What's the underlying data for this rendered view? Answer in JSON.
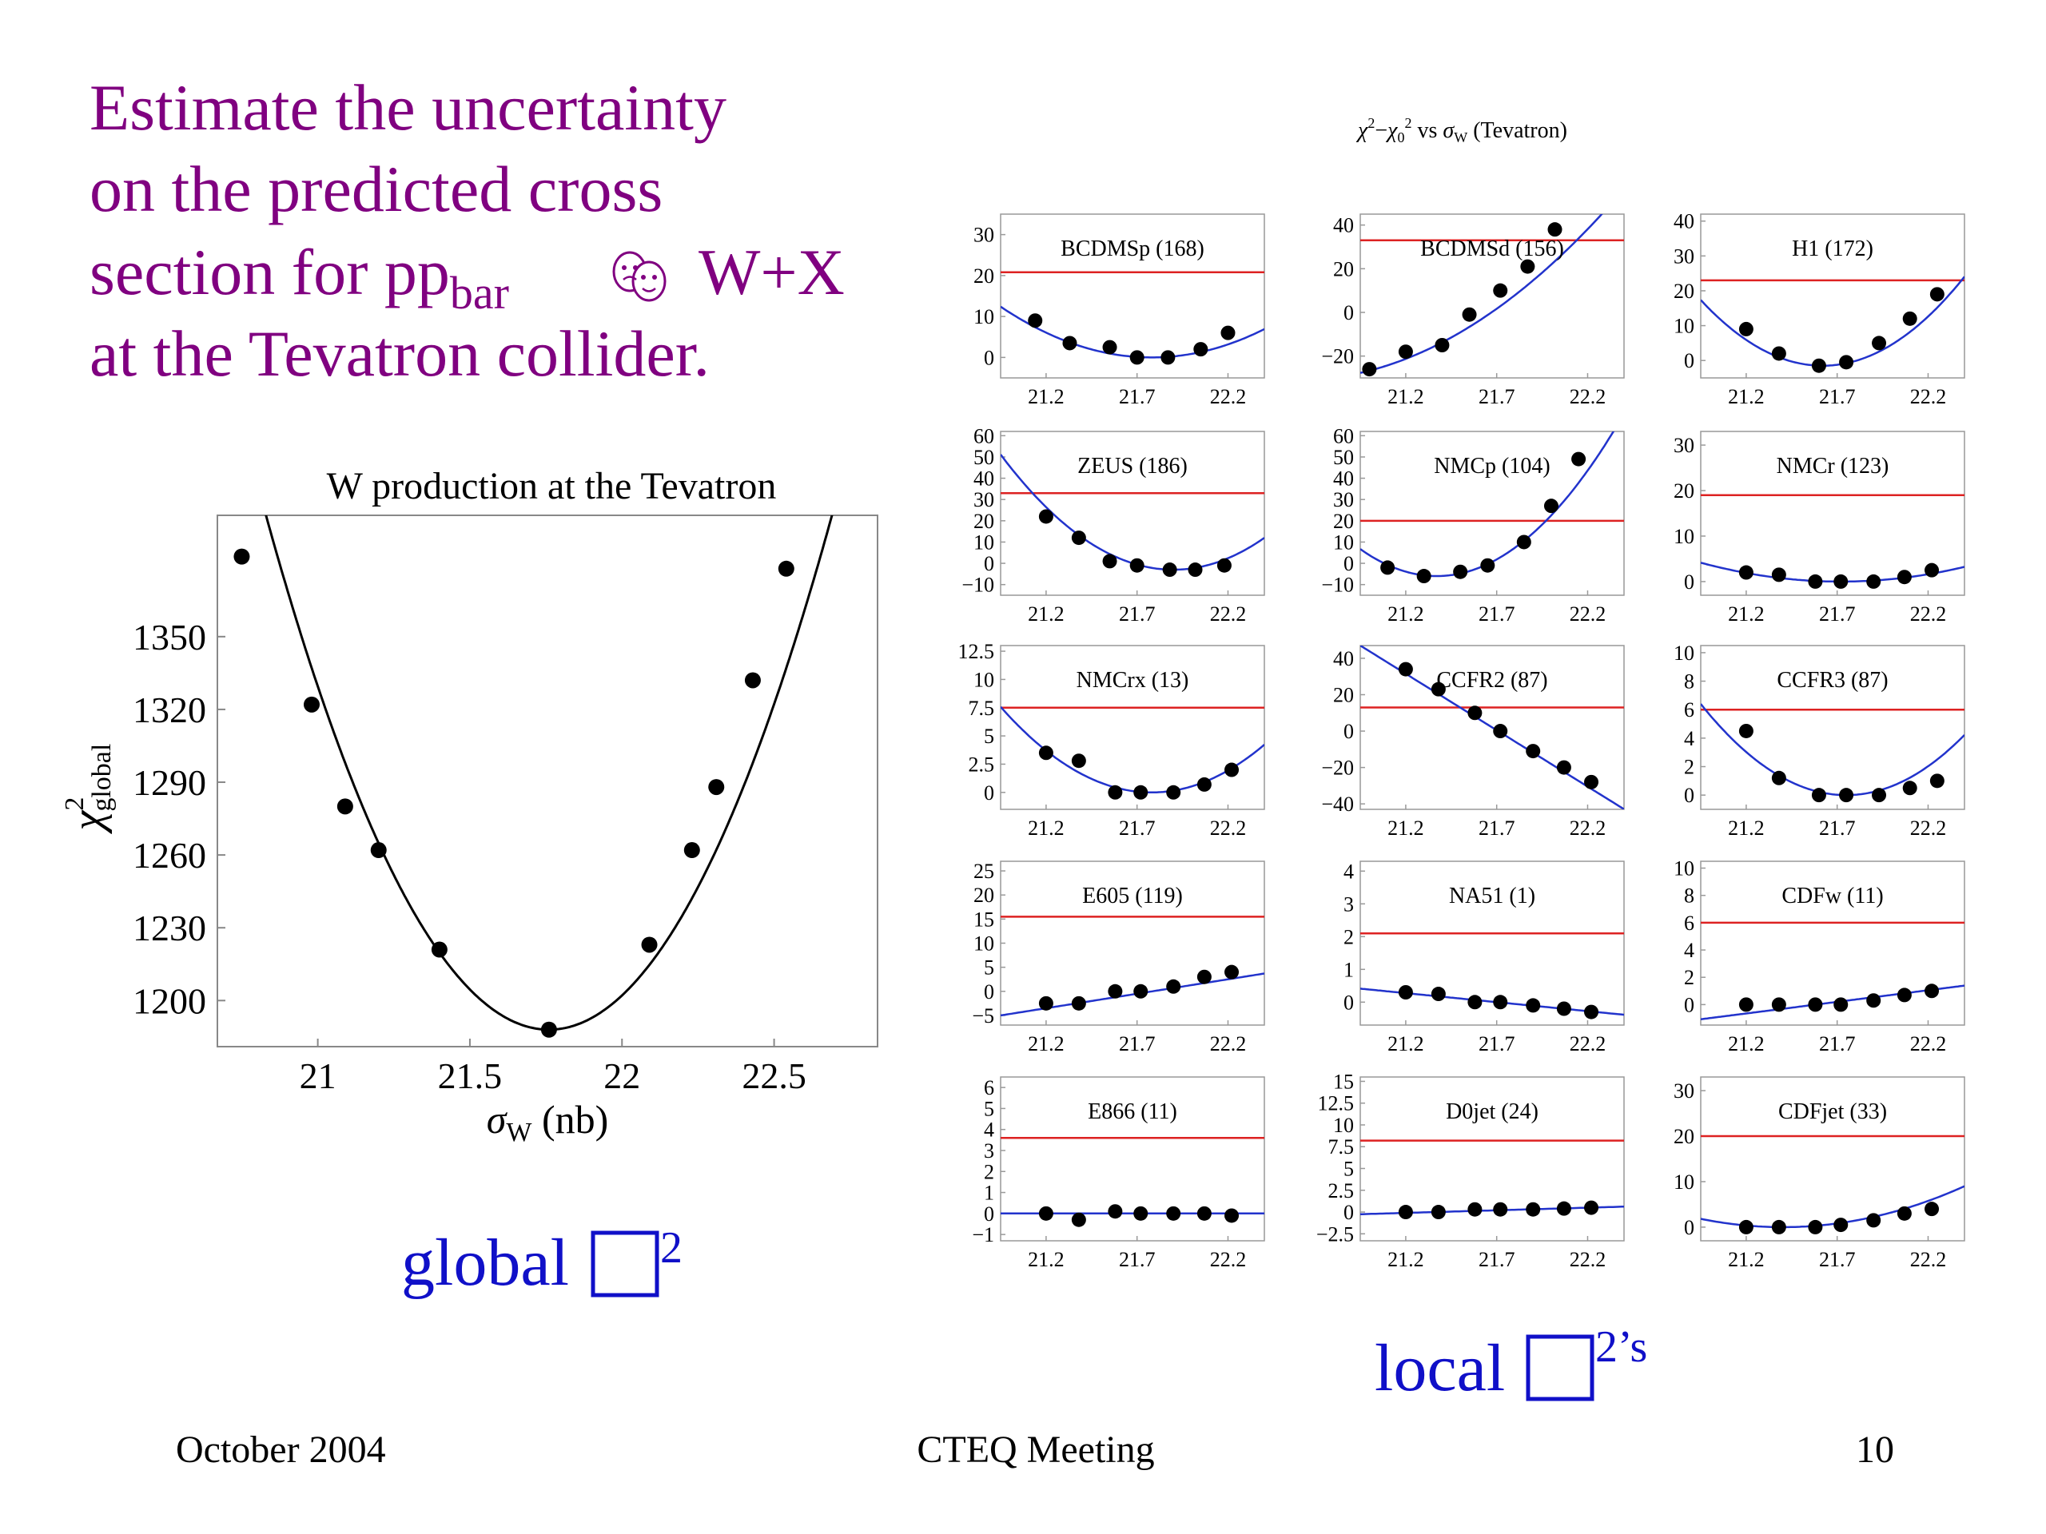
{
  "slide": {
    "title_lines": [
      "Estimate the uncertainty",
      "on the predicted cross",
      "section for pp",
      "bar",
      "W+X",
      "at the Tevatron collider."
    ],
    "title_color": "#800080",
    "footer_left": "October 2004",
    "footer_center": "CTEQ Meeting",
    "footer_right": "10",
    "global_label": "global",
    "global_sup": "2",
    "local_label": "local",
    "local_sup": "2’s",
    "accent_blue": "#1010c8"
  },
  "chart_data": [
    {
      "id": "main",
      "type": "scatter",
      "title": "W production at the Tevatron",
      "xlabel": "σ",
      "xlabel_sub": "W",
      "xlabel_unit": " (nb)",
      "ylabel": "χ",
      "ylabel_sup": "2",
      "ylabel_sub": "global",
      "xlim": [
        20.67,
        22.84
      ],
      "ylim": [
        1181,
        1400
      ],
      "xticks": [
        21,
        21.5,
        22,
        22.5
      ],
      "xtick_labels": [
        "21",
        "21.5",
        "22",
        "22.5"
      ],
      "yticks": [
        1200,
        1230,
        1260,
        1290,
        1320,
        1350
      ],
      "ytick_labels": [
        "1200",
        "1230",
        "1260",
        "1290",
        "1320",
        "1350"
      ],
      "points": [
        [
          20.75,
          1383
        ],
        [
          20.98,
          1322
        ],
        [
          21.09,
          1280
        ],
        [
          21.2,
          1262
        ],
        [
          21.4,
          1221
        ],
        [
          21.76,
          1188
        ],
        [
          22.09,
          1223
        ],
        [
          22.23,
          1262
        ],
        [
          22.31,
          1288
        ],
        [
          22.43,
          1332
        ],
        [
          22.54,
          1378
        ]
      ],
      "curve": {
        "a": 245,
        "x0": 21.76,
        "c": 1188
      },
      "colors": {
        "curve": "#000000",
        "points": "#000000"
      }
    },
    {
      "id": "local-grid",
      "type": "scatter",
      "title": "χ²−χ₀² vs σW (Tevatron)",
      "title_parts": {
        "chi": "χ",
        "sq": "2",
        "minus": "−",
        "chi0": "χ",
        "zero": "0",
        "vs": " vs ",
        "sigma": "σ",
        "w": "W",
        "tail": " (Tevatron)"
      },
      "xlim": [
        20.95,
        22.4
      ],
      "xticks": [
        21.2,
        21.7,
        22.2
      ],
      "xtick_labels": [
        "21.2",
        "21.7",
        "22.2"
      ],
      "colors": {
        "curve": "#2233cc",
        "reference": "#dd2222",
        "points": "#000000"
      },
      "panels": [
        {
          "label": "BCDMSp (168)",
          "ylim": [
            -5,
            35
          ],
          "yticks": [
            0,
            10,
            20,
            30
          ],
          "ytick_labels": [
            "0",
            "10",
            "20",
            "30"
          ],
          "ref": 20.8,
          "points": [
            [
              21.14,
              9
            ],
            [
              21.33,
              3.5
            ],
            [
              21.55,
              2.5
            ],
            [
              21.7,
              0
            ],
            [
              21.87,
              0
            ],
            [
              22.05,
              2
            ],
            [
              22.2,
              6
            ]
          ],
          "curve": {
            "a": 18,
            "x0": 21.78,
            "c": 0
          }
        },
        {
          "label": "BCDMSd (156)",
          "ylim": [
            -30,
            45
          ],
          "yticks": [
            -20,
            0,
            20,
            40
          ],
          "ytick_labels": [
            "−20",
            "0",
            "20",
            "40"
          ],
          "ref": 33,
          "points": [
            [
              21.0,
              -26
            ],
            [
              21.2,
              -18
            ],
            [
              21.4,
              -15
            ],
            [
              21.55,
              -1
            ],
            [
              21.72,
              10
            ],
            [
              21.87,
              21
            ],
            [
              22.02,
              38
            ]
          ],
          "curve": {
            "a": 27,
            "x0": 20.6,
            "c": -31
          }
        },
        {
          "label": "H1 (172)",
          "ylim": [
            -5,
            42
          ],
          "yticks": [
            0,
            10,
            20,
            30,
            40
          ],
          "ytick_labels": [
            "0",
            "10",
            "20",
            "30",
            "40"
          ],
          "ref": 23,
          "points": [
            [
              21.2,
              9
            ],
            [
              21.38,
              2
            ],
            [
              21.6,
              -1.5
            ],
            [
              21.75,
              -0.5
            ],
            [
              21.93,
              5
            ],
            [
              22.1,
              12
            ],
            [
              22.25,
              19
            ]
          ],
          "curve": {
            "a": 42,
            "x0": 21.62,
            "c": -1.5
          }
        },
        {
          "label": "ZEUS (186)",
          "ylim": [
            -15,
            62
          ],
          "yticks": [
            -10,
            0,
            10,
            20,
            30,
            40,
            50,
            60
          ],
          "ytick_labels": [
            "−10",
            "0",
            "10",
            "20",
            "30",
            "40",
            "50",
            "60"
          ],
          "ref": 33,
          "points": [
            [
              21.2,
              22
            ],
            [
              21.38,
              12
            ],
            [
              21.55,
              1
            ],
            [
              21.7,
              -1
            ],
            [
              21.88,
              -3
            ],
            [
              22.02,
              -3
            ],
            [
              22.18,
              -1
            ]
          ],
          "curve": {
            "a": 60,
            "x0": 21.9,
            "c": -3
          }
        },
        {
          "label": "NMCp (104)",
          "ylim": [
            -15,
            62
          ],
          "yticks": [
            -10,
            0,
            10,
            20,
            30,
            40,
            50,
            60
          ],
          "ytick_labels": [
            "−10",
            "0",
            "10",
            "20",
            "30",
            "40",
            "50",
            "60"
          ],
          "ref": 20,
          "points": [
            [
              21.1,
              -2
            ],
            [
              21.3,
              -6
            ],
            [
              21.5,
              -4
            ],
            [
              21.65,
              -1
            ],
            [
              21.85,
              10
            ],
            [
              22.0,
              27
            ],
            [
              22.15,
              49
            ]
          ],
          "curve": {
            "a": 72,
            "x0": 21.37,
            "c": -6
          }
        },
        {
          "label": "NMCr (123)",
          "ylim": [
            -3,
            33
          ],
          "yticks": [
            0,
            10,
            20,
            30
          ],
          "ytick_labels": [
            "0",
            "10",
            "20",
            "30"
          ],
          "ref": 19,
          "points": [
            [
              21.2,
              2
            ],
            [
              21.38,
              1.5
            ],
            [
              21.58,
              0
            ],
            [
              21.72,
              0
            ],
            [
              21.9,
              0
            ],
            [
              22.07,
              1
            ],
            [
              22.22,
              2.5
            ]
          ],
          "curve": {
            "a": 7,
            "x0": 21.72,
            "c": 0
          }
        },
        {
          "label": "NMCrx (13)",
          "ylim": [
            -1.5,
            13
          ],
          "yticks": [
            0,
            2.5,
            5,
            7.5,
            10,
            12.5
          ],
          "ytick_labels": [
            "0",
            "2.5",
            "5",
            "7.5",
            "10",
            "12.5"
          ],
          "ref": 7.5,
          "points": [
            [
              21.2,
              3.5
            ],
            [
              21.38,
              2.8
            ],
            [
              21.58,
              0
            ],
            [
              21.72,
              0
            ],
            [
              21.9,
              0
            ],
            [
              22.07,
              0.7
            ],
            [
              22.22,
              2
            ]
          ],
          "curve": {
            "a": 11,
            "x0": 21.78,
            "c": 0
          }
        },
        {
          "label": "CCFR2 (87)",
          "ylim": [
            -43,
            47
          ],
          "yticks": [
            -40,
            -20,
            0,
            20,
            40
          ],
          "ytick_labels": [
            "−40",
            "−20",
            "0",
            "20",
            "40"
          ],
          "ref": 13,
          "points": [
            [
              21.2,
              34
            ],
            [
              21.38,
              23
            ],
            [
              21.58,
              10
            ],
            [
              21.72,
              0
            ],
            [
              21.9,
              -11
            ],
            [
              22.07,
              -20
            ],
            [
              22.22,
              -28
            ]
          ],
          "curve": {
            "a": 0,
            "x0": 21.7,
            "c": 0,
            "slope": -62,
            "intercept": 0.5
          }
        },
        {
          "label": "CCFR3 (87)",
          "ylim": [
            -1,
            10.5
          ],
          "yticks": [
            0,
            2,
            4,
            6,
            8,
            10
          ],
          "ytick_labels": [
            "0",
            "2",
            "4",
            "6",
            "8",
            "10"
          ],
          "ref": 6,
          "points": [
            [
              21.2,
              4.5
            ],
            [
              21.38,
              1.2
            ],
            [
              21.6,
              0
            ],
            [
              21.75,
              0
            ],
            [
              21.93,
              0
            ],
            [
              22.1,
              0.5
            ],
            [
              22.25,
              1
            ]
          ],
          "curve": {
            "a": 10,
            "x0": 21.75,
            "c": 0
          }
        },
        {
          "label": "E605 (119)",
          "ylim": [
            -7,
            27
          ],
          "yticks": [
            -5,
            0,
            5,
            10,
            15,
            20,
            25
          ],
          "ytick_labels": [
            "−5",
            "0",
            "5",
            "10",
            "15",
            "20",
            "25"
          ],
          "ref": 15.5,
          "points": [
            [
              21.2,
              -2.5
            ],
            [
              21.38,
              -2.5
            ],
            [
              21.58,
              0
            ],
            [
              21.72,
              0
            ],
            [
              21.9,
              1
            ],
            [
              22.07,
              3
            ],
            [
              22.22,
              4
            ]
          ],
          "curve": {
            "a": 0,
            "x0": 21.7,
            "c": 0,
            "slope": 6,
            "intercept": -0.5
          }
        },
        {
          "label": "NA51 (1)",
          "ylim": [
            -0.7,
            4.3
          ],
          "yticks": [
            0,
            1,
            2,
            3,
            4
          ],
          "ytick_labels": [
            "0",
            "1",
            "2",
            "3",
            "4"
          ],
          "ref": 2.1,
          "points": [
            [
              21.2,
              0.3
            ],
            [
              21.38,
              0.25
            ],
            [
              21.58,
              0
            ],
            [
              21.72,
              0
            ],
            [
              21.9,
              -0.1
            ],
            [
              22.07,
              -0.2
            ],
            [
              22.22,
              -0.3
            ]
          ],
          "curve": {
            "a": 0,
            "x0": 21.7,
            "c": 0,
            "slope": -0.55,
            "intercept": 0
          }
        },
        {
          "label": "CDFw (11)",
          "ylim": [
            -1.5,
            10.5
          ],
          "yticks": [
            0,
            2,
            4,
            6,
            8,
            10
          ],
          "ytick_labels": [
            "0",
            "2",
            "4",
            "6",
            "8",
            "10"
          ],
          "ref": 6,
          "points": [
            [
              21.2,
              0
            ],
            [
              21.38,
              0
            ],
            [
              21.58,
              0
            ],
            [
              21.72,
              0
            ],
            [
              21.9,
              0.3
            ],
            [
              22.07,
              0.7
            ],
            [
              22.22,
              1
            ]
          ],
          "curve": {
            "a": 0,
            "x0": 21.7,
            "c": 0,
            "slope": 1.7,
            "intercept": 0.2
          }
        },
        {
          "label": "E866 (11)",
          "ylim": [
            -1.3,
            6.5
          ],
          "yticks": [
            -1,
            0,
            1,
            2,
            3,
            4,
            5,
            6
          ],
          "ytick_labels": [
            "−1",
            "0",
            "1",
            "2",
            "3",
            "4",
            "5",
            "6"
          ],
          "ref": 3.6,
          "points": [
            [
              21.2,
              0
            ],
            [
              21.38,
              -0.3
            ],
            [
              21.58,
              0.1
            ],
            [
              21.72,
              0
            ],
            [
              21.9,
              0
            ],
            [
              22.07,
              0
            ],
            [
              22.22,
              -0.1
            ]
          ],
          "curve": {
            "a": 0,
            "x0": 21.7,
            "c": 0,
            "slope": 0,
            "intercept": 0
          }
        },
        {
          "label": "D0jet (24)",
          "ylim": [
            -3.3,
            15.5
          ],
          "yticks": [
            -2.5,
            0,
            2.5,
            5,
            7.5,
            10,
            12.5,
            15
          ],
          "ytick_labels": [
            "−2.5",
            "0",
            "2.5",
            "5",
            "7.5",
            "10",
            "12.5",
            "15"
          ],
          "ref": 8.2,
          "points": [
            [
              21.2,
              0
            ],
            [
              21.38,
              0
            ],
            [
              21.58,
              0.3
            ],
            [
              21.72,
              0.3
            ],
            [
              21.9,
              0.3
            ],
            [
              22.07,
              0.4
            ],
            [
              22.22,
              0.5
            ]
          ],
          "curve": {
            "a": 0,
            "x0": 21.7,
            "c": 0,
            "slope": 0.6,
            "intercept": 0.2
          }
        },
        {
          "label": "CDFjet (33)",
          "ylim": [
            -3,
            33
          ],
          "yticks": [
            0,
            10,
            20,
            30
          ],
          "ytick_labels": [
            "0",
            "10",
            "20",
            "30"
          ],
          "ref": 20,
          "points": [
            [
              21.2,
              0
            ],
            [
              21.38,
              0
            ],
            [
              21.58,
              0
            ],
            [
              21.72,
              0.5
            ],
            [
              21.9,
              1.5
            ],
            [
              22.07,
              3
            ],
            [
              22.22,
              4
            ]
          ],
          "curve": {
            "a": 9,
            "x0": 21.4,
            "c": 0
          }
        }
      ]
    }
  ]
}
